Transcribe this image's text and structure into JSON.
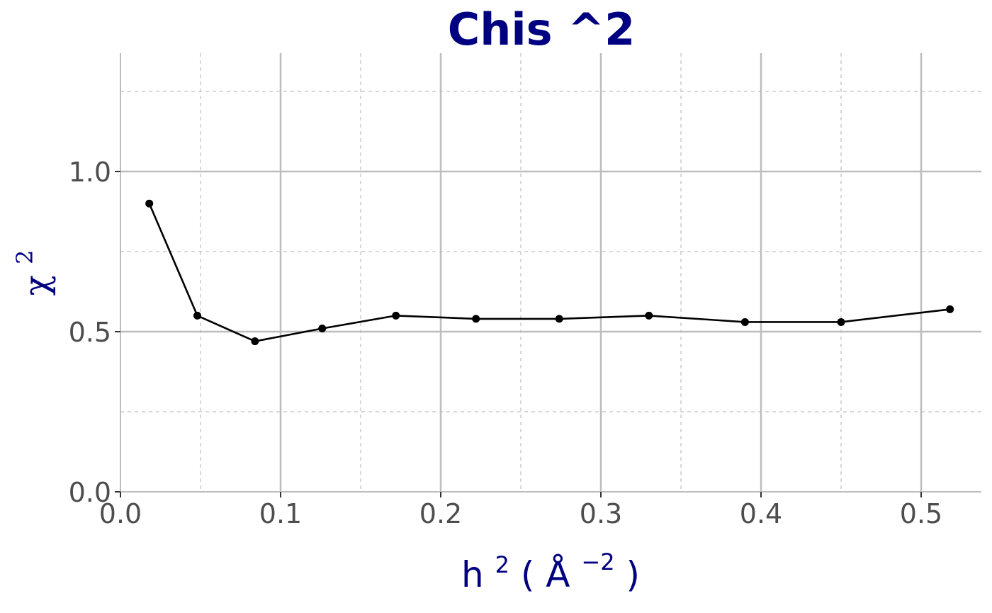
{
  "colors": {
    "title": "#000080",
    "axis_title": "#000080",
    "tick_label": "#4d4d4d",
    "major_grid": "#bdbdbd",
    "minor_grid": "#cccccc",
    "series_line": "#000000",
    "series_point": "#000000",
    "background": "#ffffff"
  },
  "chart_data": {
    "type": "line",
    "title": "Chis ^2",
    "xlabel": {
      "base": "h",
      "base_sup": "2",
      "open": "(",
      "unit": "Å",
      "unit_sup": "−2",
      "close": ")"
    },
    "ylabel": {
      "base": "χ",
      "sup": "2"
    },
    "xlim": [
      0.0,
      0.535
    ],
    "ylim": [
      0.0,
      1.37
    ],
    "x_major_ticks": [
      0.0,
      0.1,
      0.2,
      0.3,
      0.4,
      0.5
    ],
    "x_tick_labels": [
      "0.0",
      "0.1",
      "0.2",
      "0.3",
      "0.4",
      "0.5"
    ],
    "x_minor_ticks": [
      0.05,
      0.15,
      0.25,
      0.35,
      0.45
    ],
    "y_major_ticks": [
      0.0,
      0.5,
      1.0
    ],
    "y_tick_labels": [
      "0.0",
      "0.5",
      "1.0"
    ],
    "y_minor_ticks": [
      0.25,
      0.75,
      1.25
    ],
    "grid": true,
    "legend": "none",
    "series": [
      {
        "x": [
          0.018,
          0.048,
          0.084,
          0.126,
          0.172,
          0.222,
          0.274,
          0.33,
          0.39,
          0.45,
          0.518
        ],
        "y": [
          0.9,
          0.55,
          0.47,
          0.51,
          0.55,
          0.54,
          0.54,
          0.55,
          0.53,
          0.53,
          0.57
        ]
      }
    ]
  }
}
